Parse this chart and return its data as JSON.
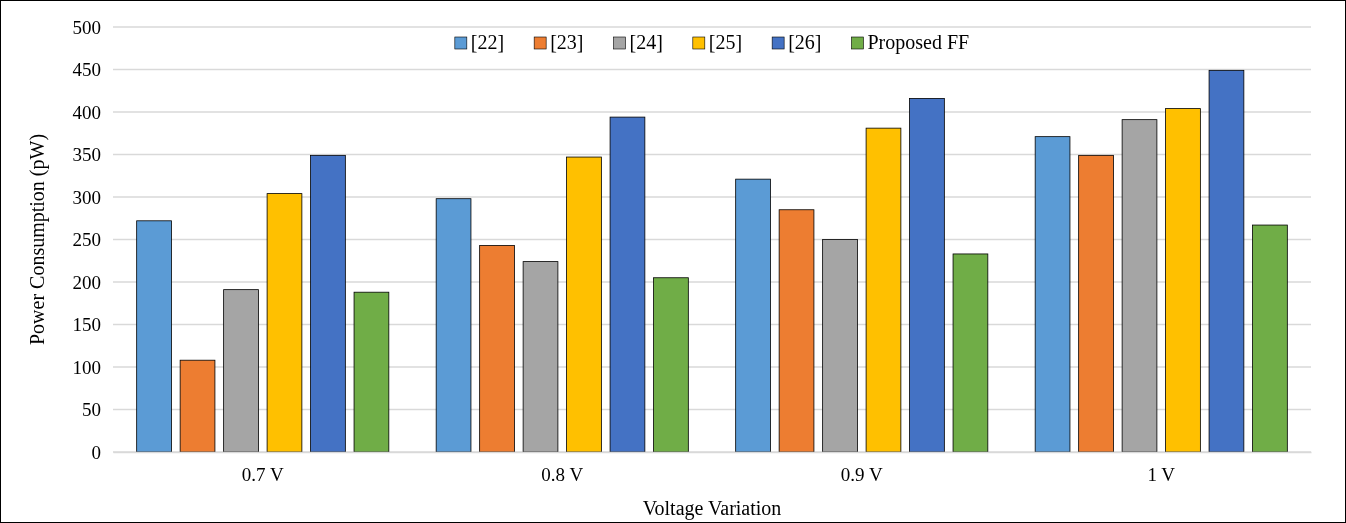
{
  "chart_data": {
    "type": "bar",
    "xlabel": "Voltage Variation",
    "ylabel": "Power Consumption (pW)",
    "categories": [
      "0.7 V",
      "0.8 V",
      "0.9 V",
      "1 V"
    ],
    "series": [
      {
        "name": "[22]",
        "color": "#5b9bd5",
        "values": [
          272,
          298,
          321,
          371
        ]
      },
      {
        "name": "[23]",
        "color": "#ed7d31",
        "values": [
          108,
          243,
          285,
          349
        ]
      },
      {
        "name": "[24]",
        "color": "#a5a5a5",
        "values": [
          191,
          224,
          250,
          391
        ]
      },
      {
        "name": "[25]",
        "color": "#ffc000",
        "values": [
          304,
          347,
          381,
          404
        ]
      },
      {
        "name": "[26]",
        "color": "#4472c4",
        "values": [
          349,
          394,
          416,
          449
        ]
      },
      {
        "name": "Proposed FF",
        "color": "#70ad47",
        "values": [
          188,
          205,
          233,
          267
        ]
      }
    ],
    "ylim": [
      0,
      500
    ],
    "yticks": [
      0,
      50,
      100,
      150,
      200,
      250,
      300,
      350,
      400,
      450,
      500
    ],
    "grid": "y",
    "legend": "top"
  }
}
